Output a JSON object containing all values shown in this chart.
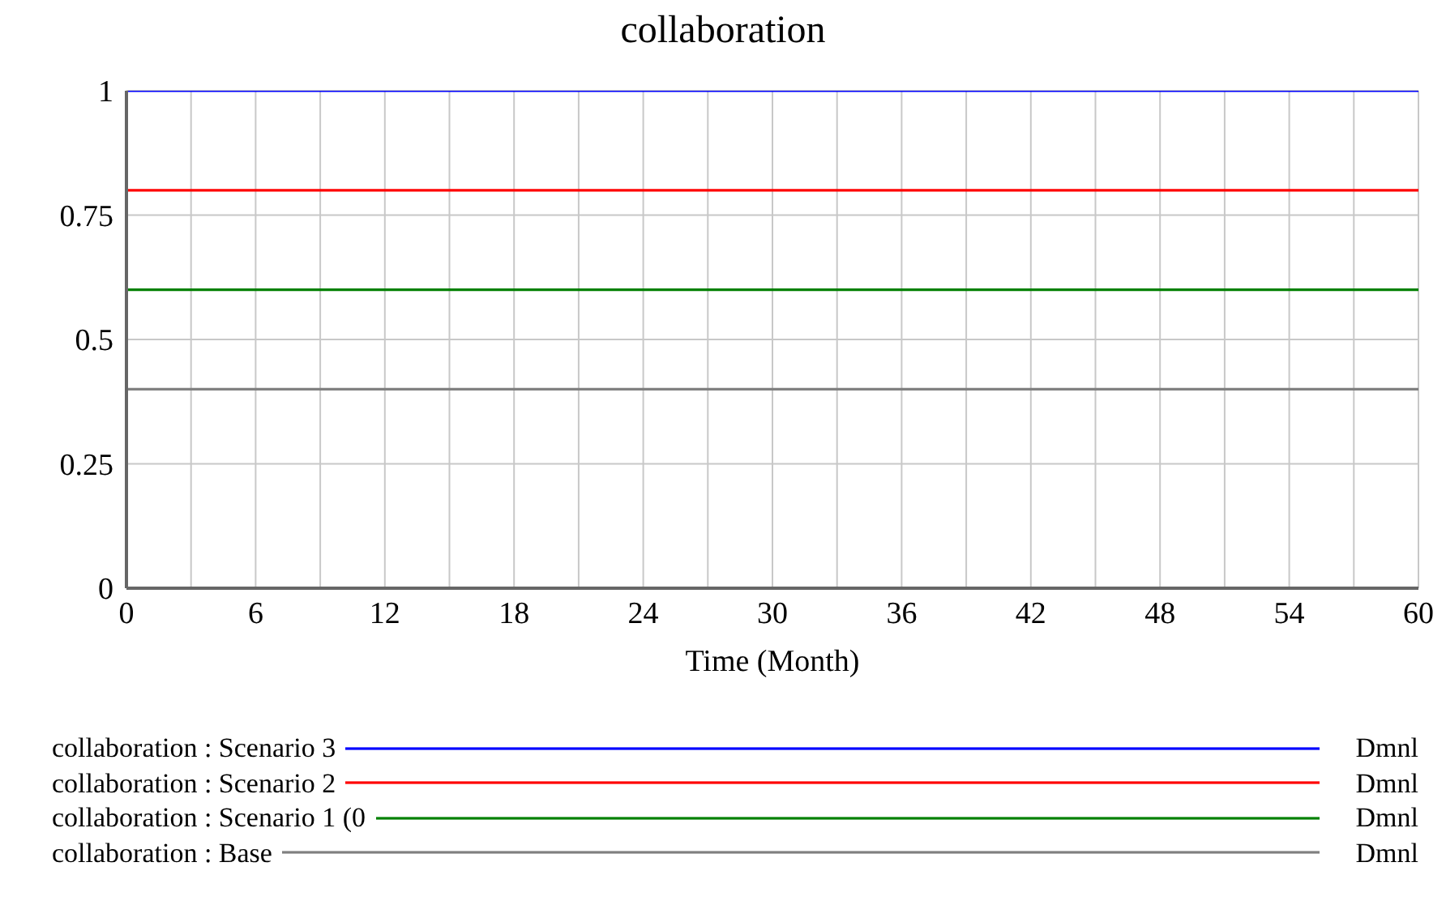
{
  "chart_data": {
    "type": "line",
    "title": "collaboration",
    "xlabel": "Time (Month)",
    "x": [
      0,
      60
    ],
    "series": [
      {
        "name": "collaboration : Scenario 3",
        "color": "#0000ff",
        "values": [
          1,
          1
        ]
      },
      {
        "name": "collaboration : Scenario 2",
        "color": "#ff0000",
        "values": [
          0.8,
          0.8
        ]
      },
      {
        "name": "collaboration : Scenario 1 (0",
        "color": "#008000",
        "values": [
          0.6,
          0.6
        ]
      },
      {
        "name": "collaboration : Base",
        "color": "#808080",
        "values": [
          0.4,
          0.4
        ]
      }
    ],
    "annotations": [
      "Dmnl",
      "Dmnl",
      "Dmnl",
      "Dmnl"
    ],
    "xlim": [
      0,
      60
    ],
    "xticks": [
      0,
      {
        "value": 3,
        "label": null
      },
      6,
      {
        "value": 9,
        "label": null
      },
      12,
      {
        "value": 15,
        "label": null
      },
      18,
      {
        "value": 21,
        "label": null
      },
      24,
      {
        "value": 27,
        "label": null
      },
      30,
      {
        "value": 33,
        "label": null
      },
      36,
      {
        "value": 39,
        "label": null
      },
      42,
      {
        "value": 45,
        "label": null
      },
      48,
      {
        "value": 51,
        "label": null
      },
      54,
      {
        "value": 57,
        "label": null
      },
      60
    ],
    "ylim": [
      0,
      1
    ],
    "yticks": [
      0,
      0.25,
      0.5,
      0.75,
      1
    ],
    "grid": true,
    "legend": "bottom",
    "marker": "none",
    "line_style": "solid"
  }
}
